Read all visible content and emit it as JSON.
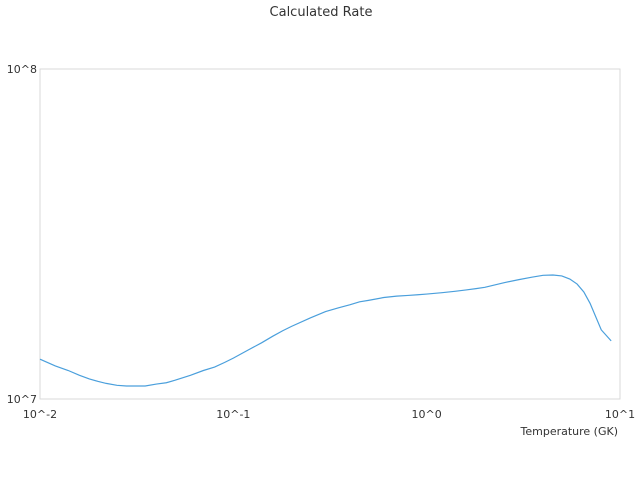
{
  "chart_data": {
    "type": "line",
    "title": "Calculated Rate",
    "xlabel": "Temperature (GK)",
    "ylabel": "",
    "x_scale": "log",
    "y_scale": "log",
    "xlim": [
      0.01,
      10
    ],
    "ylim": [
      10000000,
      100000000
    ],
    "x_ticks": [
      {
        "value": 0.01,
        "label": "10^-2"
      },
      {
        "value": 0.1,
        "label": "10^-1"
      },
      {
        "value": 1,
        "label": "10^0"
      },
      {
        "value": 10,
        "label": "10^1"
      }
    ],
    "y_ticks": [
      {
        "value": 10000000,
        "label": "10^7"
      },
      {
        "value": 100000000,
        "label": "10^8"
      }
    ],
    "grid": false,
    "legend": "none",
    "line_color": "#4a9fdc",
    "series": [
      {
        "x": [
          0.01,
          0.012,
          0.014,
          0.016,
          0.018,
          0.02,
          0.022,
          0.025,
          0.028,
          0.03,
          0.035,
          0.04,
          0.045,
          0.05,
          0.06,
          0.07,
          0.08,
          0.09,
          0.1,
          0.12,
          0.14,
          0.16,
          0.18,
          0.2,
          0.25,
          0.3,
          0.35,
          0.4,
          0.45,
          0.5,
          0.6,
          0.7,
          0.8,
          0.9,
          1.0,
          1.2,
          1.4,
          1.6,
          1.8,
          2.0,
          2.5,
          3.0,
          3.5,
          4.0,
          4.5,
          5.0,
          5.5,
          6.0,
          6.5,
          7.0,
          8.0,
          9.0
        ],
        "y": [
          13200000,
          12600000,
          12200000,
          11800000,
          11500000,
          11300000,
          11150000,
          11000000,
          10950000,
          10950000,
          10950000,
          11100000,
          11200000,
          11400000,
          11800000,
          12200000,
          12500000,
          12900000,
          13300000,
          14100000,
          14800000,
          15500000,
          16100000,
          16600000,
          17600000,
          18400000,
          18900000,
          19300000,
          19700000,
          19900000,
          20300000,
          20500000,
          20600000,
          20700000,
          20800000,
          21000000,
          21200000,
          21400000,
          21600000,
          21800000,
          22500000,
          23000000,
          23400000,
          23700000,
          23750000,
          23600000,
          23100000,
          22300000,
          21100000,
          19500000,
          16200000,
          15000000
        ]
      }
    ]
  }
}
